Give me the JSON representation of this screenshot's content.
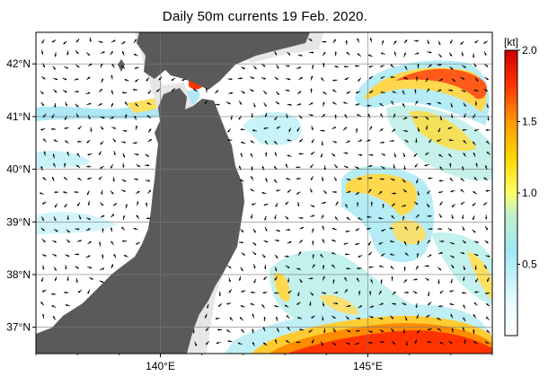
{
  "title": "Daily 50m currents 19 Feb. 2020.",
  "map": {
    "lon_range": [
      137.0,
      148.0
    ],
    "lat_range": [
      36.5,
      42.6
    ],
    "lat_ticks": [
      {
        "value": 37,
        "label": "37°N"
      },
      {
        "value": 38,
        "label": "38°N"
      },
      {
        "value": 39,
        "label": "39°N"
      },
      {
        "value": 40,
        "label": "40°N"
      },
      {
        "value": 41,
        "label": "41°N"
      },
      {
        "value": 42,
        "label": "42°N"
      }
    ],
    "lon_ticks": [
      {
        "value": 140,
        "label": "140°E"
      },
      {
        "value": 145,
        "label": "145°E"
      }
    ],
    "grid_lines": true,
    "land_color": "#5a5a5a",
    "shelf_color": "#e6e6e6"
  },
  "colorbar": {
    "unit": "[kt]",
    "min": 0.0,
    "max": 2.0,
    "ticks": [
      {
        "value": 0.5,
        "label": "0.5"
      },
      {
        "value": 1.0,
        "label": "1.0"
      },
      {
        "value": 1.5,
        "label": "1.5"
      },
      {
        "value": 2.0,
        "label": "2.0"
      }
    ],
    "colors": [
      "#ffffff",
      "#bfefff",
      "#7fe0f0",
      "#ffff80",
      "#ffd700",
      "#ff8c00",
      "#ff3300",
      "#cc0000"
    ]
  }
}
